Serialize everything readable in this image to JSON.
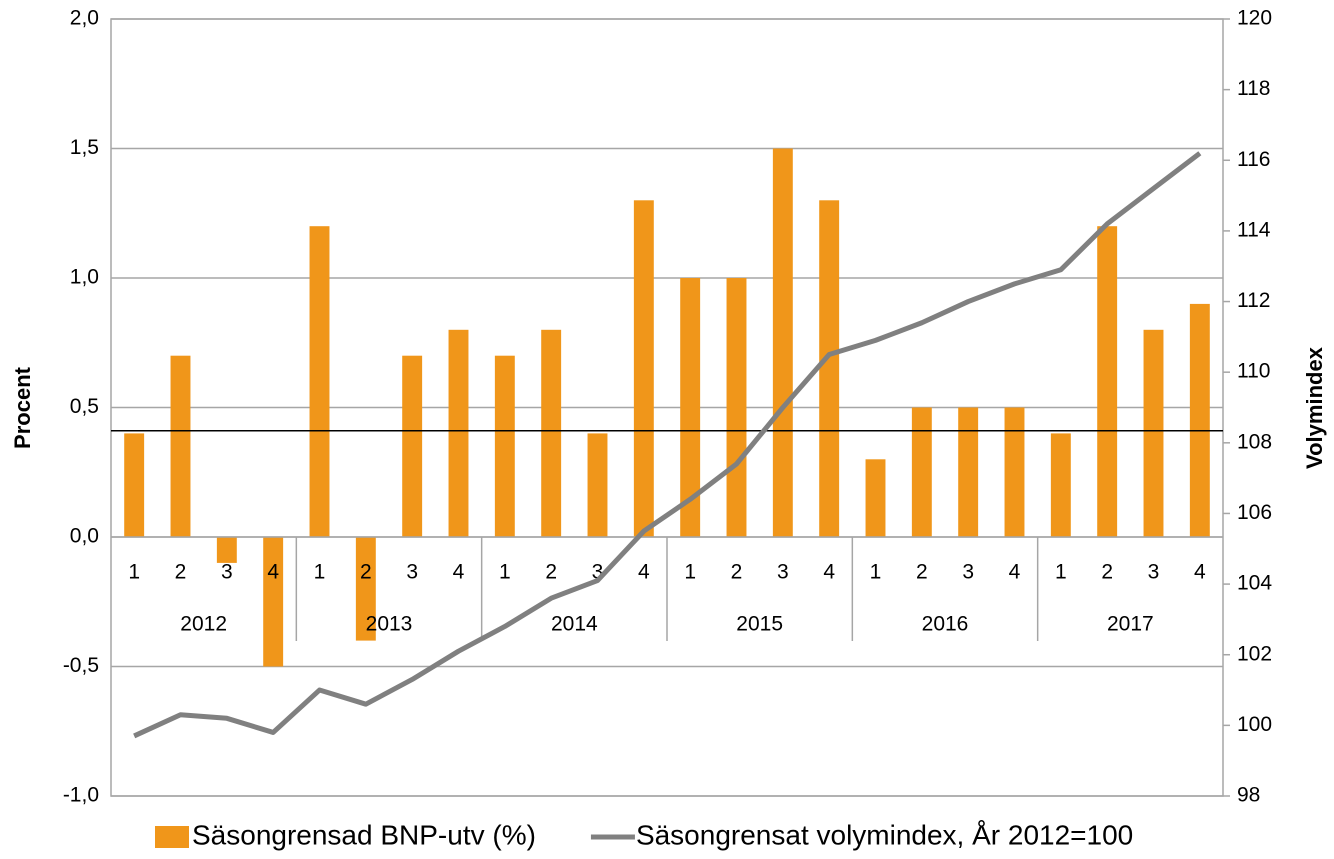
{
  "chart_data": {
    "type": "bar_line",
    "y_label": "Procent",
    "y2_label": "Volymindex",
    "categories": [
      "1",
      "2",
      "3",
      "4",
      "1",
      "2",
      "3",
      "4",
      "1",
      "2",
      "3",
      "4",
      "1",
      "2",
      "3",
      "4",
      "1",
      "2",
      "3",
      "4",
      "1",
      "2",
      "3",
      "4"
    ],
    "groups": [
      "2012",
      "2013",
      "2014",
      "2015",
      "2016",
      "2017"
    ],
    "series": [
      {
        "name": "Säsongrensad BNP-utv (%)",
        "type": "bar",
        "color": "#f0961a",
        "values": [
          0.4,
          0.7,
          -0.1,
          -0.5,
          1.2,
          -0.4,
          0.7,
          0.8,
          0.7,
          0.8,
          0.4,
          1.3,
          1.0,
          1.0,
          1.5,
          1.3,
          0.3,
          0.5,
          0.5,
          0.5,
          0.4,
          1.2,
          0.8,
          0.9
        ]
      },
      {
        "name": "Säsongrensat volymindex, År 2012=100",
        "type": "line",
        "axis": "y2",
        "color": "#808080",
        "values": [
          99.7,
          100.3,
          100.2,
          99.8,
          101.0,
          100.6,
          101.3,
          102.1,
          102.8,
          103.6,
          104.1,
          105.5,
          106.4,
          107.4,
          109.0,
          110.5,
          110.9,
          111.4,
          112.0,
          112.5,
          112.9,
          114.2,
          115.2,
          116.2
        ]
      }
    ],
    "reference_line": 0.41,
    "ylim": [
      -1.0,
      2.0
    ],
    "yticks": [
      {
        "value": -1.0,
        "label": "-1,0"
      },
      {
        "value": -0.5,
        "label": "-0,5"
      },
      {
        "value": 0.0,
        "label": "0,0"
      },
      {
        "value": 0.5,
        "label": "0,5"
      },
      {
        "value": 1.0,
        "label": "1,0"
      },
      {
        "value": 1.5,
        "label": "1,5"
      },
      {
        "value": 2.0,
        "label": "2,0"
      }
    ],
    "y2lim": [
      98,
      120
    ],
    "y2ticks": [
      98,
      100,
      102,
      104,
      106,
      108,
      110,
      112,
      114,
      116,
      118,
      120
    ],
    "grid": true,
    "legend": "bottom"
  }
}
